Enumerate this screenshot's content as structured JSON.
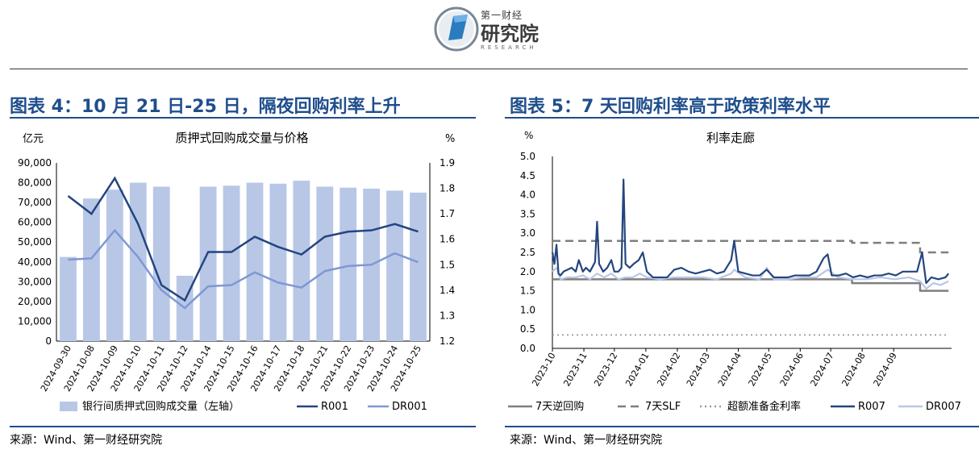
{
  "header": {
    "logo_small": "第一财经",
    "logo_big": "研究院",
    "logo_en": "RESEARCH"
  },
  "left_panel": {
    "title": "图表 4：10 月 21 日-25 日，隔夜回购利率上升",
    "source": "来源：Wind、第一财经研究院"
  },
  "right_panel": {
    "title": "图表 5：7 天回购利率高于政策利率水平",
    "source": "来源：Wind、第一财经研究院"
  },
  "chart_data": [
    {
      "type": "bar+line",
      "title": "质押式回购成交量与价格",
      "y_left_unit": "亿元",
      "y_right_unit": "%",
      "ylim_left": [
        0,
        90000
      ],
      "ylim_right": [
        1.2,
        1.9
      ],
      "yticks_left": [
        "0",
        "10,000",
        "20,000",
        "30,000",
        "40,000",
        "50,000",
        "60,000",
        "70,000",
        "80,000",
        "90,000"
      ],
      "yticks_right": [
        "1.2",
        "1.3",
        "1.4",
        "1.5",
        "1.6",
        "1.7",
        "1.8",
        "1.9"
      ],
      "categories": [
        "2024-09-30",
        "2024-10-08",
        "2024-10-09",
        "2024-10-10",
        "2024-10-11",
        "2024-10-12",
        "2024-10-14",
        "2024-10-15",
        "2024-10-16",
        "2024-10-17",
        "2024-10-18",
        "2024-10-21",
        "2024-10-22",
        "2024-10-23",
        "2024-10-24",
        "2024-10-25"
      ],
      "series": [
        {
          "name": "银行间质押式回购成交量（左轴）",
          "kind": "bar",
          "axis": "left",
          "color": "#b8c7e6",
          "values": [
            42500,
            72000,
            76500,
            80000,
            78000,
            33000,
            78000,
            78500,
            80000,
            79500,
            81000,
            78000,
            77500,
            77000,
            76000,
            75000
          ]
        },
        {
          "name": "R001",
          "kind": "line",
          "axis": "right",
          "color": "#24457f",
          "values": [
            1.77,
            1.7,
            1.84,
            1.66,
            1.42,
            1.36,
            1.55,
            1.55,
            1.61,
            1.57,
            1.54,
            1.61,
            1.63,
            1.635,
            1.66,
            1.63
          ]
        },
        {
          "name": "DR001",
          "kind": "line",
          "axis": "right",
          "color": "#7f98d4",
          "values": [
            1.52,
            1.525,
            1.635,
            1.53,
            1.4,
            1.33,
            1.415,
            1.42,
            1.47,
            1.43,
            1.41,
            1.475,
            1.495,
            1.5,
            1.545,
            1.51
          ]
        }
      ],
      "legend_position": "bottom"
    },
    {
      "type": "line",
      "title": "利率走廊",
      "y_unit": "%",
      "ylim": [
        0,
        5
      ],
      "yticks": [
        "0.0",
        "0.5",
        "1.0",
        "1.5",
        "2.0",
        "2.5",
        "3.0",
        "3.5",
        "4.0",
        "4.5",
        "5.0"
      ],
      "xlim": [
        "2023-10",
        "2024-10"
      ],
      "xticks": [
        "2023-10",
        "2023-11",
        "2023-12",
        "2024-01",
        "2024-02",
        "2024-03",
        "2024-04",
        "2024-05",
        "2024-06",
        "2024-07",
        "2024-08",
        "2024-09"
      ],
      "series": [
        {
          "name": "7天逆回购",
          "style": "solid",
          "color": "#7f7f7f",
          "points": [
            [
              "2023-10-01",
              1.8
            ],
            [
              "2024-07-22",
              1.8
            ],
            [
              "2024-07-22",
              1.7
            ],
            [
              "2024-09-27",
              1.7
            ],
            [
              "2024-09-27",
              1.5
            ],
            [
              "2024-10-25",
              1.5
            ]
          ]
        },
        {
          "name": "7天SLF",
          "style": "dashed",
          "color": "#7f7f7f",
          "points": [
            [
              "2023-10-01",
              2.8
            ],
            [
              "2024-07-22",
              2.8
            ],
            [
              "2024-07-22",
              2.75
            ],
            [
              "2024-09-27",
              2.75
            ],
            [
              "2024-09-27",
              2.5
            ],
            [
              "2024-10-25",
              2.5
            ]
          ]
        },
        {
          "name": "超额准备金利率",
          "style": "dotted",
          "color": "#9a9a9a",
          "points": [
            [
              "2023-10-01",
              0.35
            ],
            [
              "2024-10-25",
              0.35
            ]
          ]
        },
        {
          "name": "R007",
          "style": "solid",
          "color": "#24457f",
          "points": [
            [
              "2023-10-01",
              2.5
            ],
            [
              "2023-10-03",
              2.2
            ],
            [
              "2023-10-05",
              2.7
            ],
            [
              "2023-10-07",
              1.95
            ],
            [
              "2023-10-09",
              1.9
            ],
            [
              "2023-10-12",
              2.0
            ],
            [
              "2023-10-16",
              2.05
            ],
            [
              "2023-10-20",
              2.1
            ],
            [
              "2023-10-24",
              2.0
            ],
            [
              "2023-10-27",
              2.3
            ],
            [
              "2023-10-31",
              2.0
            ],
            [
              "2023-11-03",
              2.1
            ],
            [
              "2023-11-07",
              2.0
            ],
            [
              "2023-11-12",
              2.25
            ],
            [
              "2023-11-14",
              3.3
            ],
            [
              "2023-11-16",
              2.2
            ],
            [
              "2023-11-20",
              2.0
            ],
            [
              "2023-11-24",
              2.1
            ],
            [
              "2023-11-28",
              2.3
            ],
            [
              "2023-12-01",
              2.0
            ],
            [
              "2023-12-05",
              2.0
            ],
            [
              "2023-12-08",
              2.1
            ],
            [
              "2023-12-10",
              4.4
            ],
            [
              "2023-12-12",
              2.2
            ],
            [
              "2023-12-16",
              2.1
            ],
            [
              "2023-12-20",
              2.2
            ],
            [
              "2023-12-25",
              2.3
            ],
            [
              "2023-12-29",
              2.5
            ],
            [
              "2024-01-02",
              2.0
            ],
            [
              "2024-01-08",
              1.85
            ],
            [
              "2024-01-15",
              1.85
            ],
            [
              "2024-01-22",
              1.85
            ],
            [
              "2024-01-29",
              2.05
            ],
            [
              "2024-02-05",
              2.1
            ],
            [
              "2024-02-12",
              2.0
            ],
            [
              "2024-02-19",
              1.95
            ],
            [
              "2024-02-26",
              2.0
            ],
            [
              "2024-03-04",
              2.05
            ],
            [
              "2024-03-11",
              1.95
            ],
            [
              "2024-03-18",
              2.0
            ],
            [
              "2024-03-25",
              2.3
            ],
            [
              "2024-03-28",
              2.8
            ],
            [
              "2024-04-01",
              2.0
            ],
            [
              "2024-04-08",
              1.95
            ],
            [
              "2024-04-15",
              1.9
            ],
            [
              "2024-04-22",
              1.9
            ],
            [
              "2024-04-29",
              2.05
            ],
            [
              "2024-05-06",
              1.85
            ],
            [
              "2024-05-13",
              1.85
            ],
            [
              "2024-05-20",
              1.85
            ],
            [
              "2024-05-27",
              1.9
            ],
            [
              "2024-06-03",
              1.9
            ],
            [
              "2024-06-10",
              1.9
            ],
            [
              "2024-06-17",
              2.0
            ],
            [
              "2024-06-24",
              2.35
            ],
            [
              "2024-06-28",
              2.45
            ],
            [
              "2024-07-02",
              1.9
            ],
            [
              "2024-07-09",
              1.9
            ],
            [
              "2024-07-16",
              1.95
            ],
            [
              "2024-07-23",
              1.85
            ],
            [
              "2024-07-30",
              1.9
            ],
            [
              "2024-08-06",
              1.85
            ],
            [
              "2024-08-13",
              1.9
            ],
            [
              "2024-08-20",
              1.9
            ],
            [
              "2024-08-27",
              1.95
            ],
            [
              "2024-09-03",
              1.9
            ],
            [
              "2024-09-10",
              2.0
            ],
            [
              "2024-09-17",
              2.0
            ],
            [
              "2024-09-24",
              2.0
            ],
            [
              "2024-09-29",
              2.5
            ],
            [
              "2024-10-03",
              1.7
            ],
            [
              "2024-10-08",
              1.85
            ],
            [
              "2024-10-15",
              1.8
            ],
            [
              "2024-10-22",
              1.85
            ],
            [
              "2024-10-25",
              1.95
            ]
          ]
        },
        {
          "name": "DR007",
          "style": "solid",
          "color": "#b8c7e6",
          "points": [
            [
              "2023-10-01",
              2.0
            ],
            [
              "2023-10-05",
              2.1
            ],
            [
              "2023-10-09",
              1.8
            ],
            [
              "2023-10-16",
              1.85
            ],
            [
              "2023-10-24",
              1.85
            ],
            [
              "2023-10-31",
              1.9
            ],
            [
              "2023-11-07",
              1.8
            ],
            [
              "2023-11-14",
              1.95
            ],
            [
              "2023-11-21",
              1.85
            ],
            [
              "2023-11-28",
              1.95
            ],
            [
              "2023-12-05",
              1.8
            ],
            [
              "2023-12-12",
              1.85
            ],
            [
              "2023-12-19",
              1.85
            ],
            [
              "2023-12-26",
              1.95
            ],
            [
              "2024-01-02",
              1.85
            ],
            [
              "2024-01-15",
              1.8
            ],
            [
              "2024-01-29",
              1.85
            ],
            [
              "2024-02-12",
              1.85
            ],
            [
              "2024-02-26",
              1.85
            ],
            [
              "2024-03-11",
              1.8
            ],
            [
              "2024-03-25",
              1.95
            ],
            [
              "2024-03-28",
              2.05
            ],
            [
              "2024-04-08",
              1.85
            ],
            [
              "2024-04-22",
              1.8
            ],
            [
              "2024-04-29",
              2.1
            ],
            [
              "2024-05-06",
              1.8
            ],
            [
              "2024-05-20",
              1.8
            ],
            [
              "2024-06-03",
              1.85
            ],
            [
              "2024-06-17",
              1.85
            ],
            [
              "2024-06-28",
              2.05
            ],
            [
              "2024-07-08",
              1.85
            ],
            [
              "2024-07-22",
              1.8
            ],
            [
              "2024-08-05",
              1.8
            ],
            [
              "2024-08-19",
              1.85
            ],
            [
              "2024-09-02",
              1.8
            ],
            [
              "2024-09-16",
              1.85
            ],
            [
              "2024-09-27",
              1.75
            ],
            [
              "2024-10-03",
              1.55
            ],
            [
              "2024-10-10",
              1.7
            ],
            [
              "2024-10-17",
              1.65
            ],
            [
              "2024-10-25",
              1.75
            ]
          ]
        }
      ],
      "legend_position": "bottom"
    }
  ]
}
